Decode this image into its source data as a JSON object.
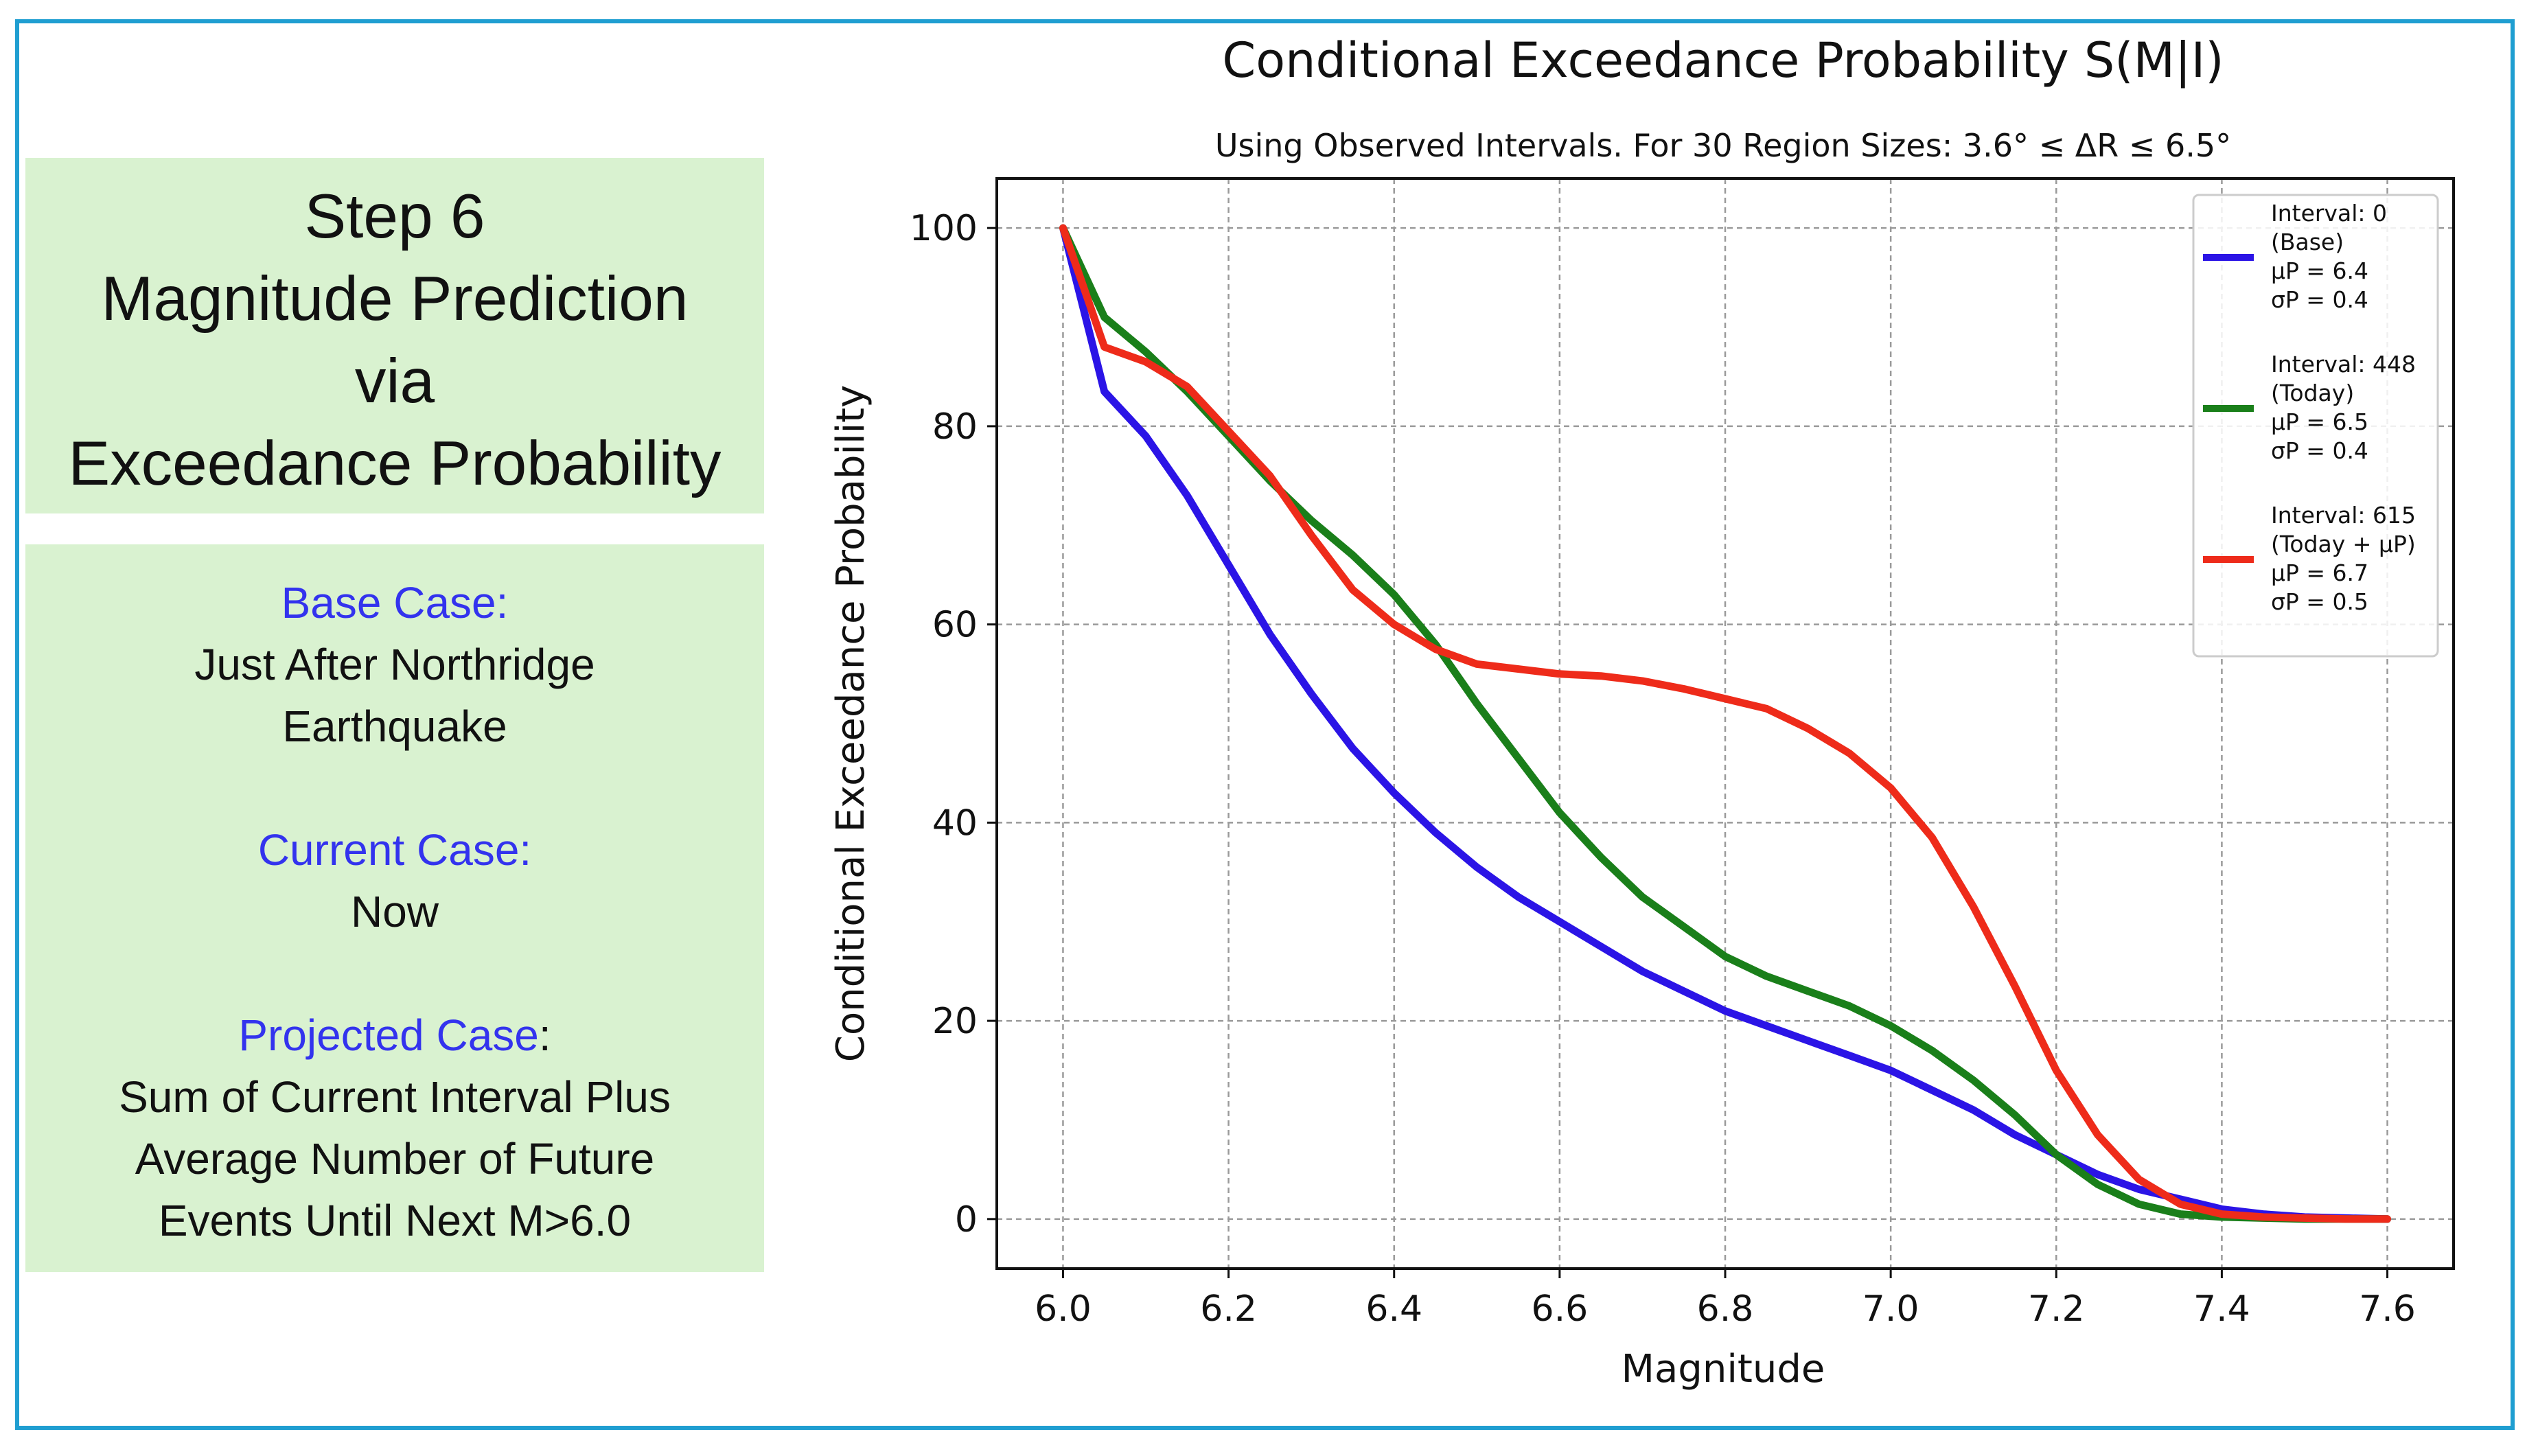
{
  "left_panel": {
    "title_lines": [
      "Step 6",
      "Magnitude Prediction",
      "via",
      "Exceedance Probability"
    ],
    "base_case": {
      "label": "Base Case:",
      "lines": [
        "Just After Northridge",
        "Earthquake"
      ]
    },
    "current_case": {
      "label": "Current Case:",
      "lines": [
        "Now"
      ]
    },
    "projected_case": {
      "label": "Projected Case",
      "colon": ":",
      "lines": [
        "Sum of Current Interval Plus",
        "Average Number of Future",
        "Events Until Next M>6.0"
      ]
    }
  },
  "colors": {
    "frame": "#1f9ed1",
    "panel_bg": "#d9f2d0",
    "case_label": "#3333ee"
  },
  "chart_data": {
    "type": "line",
    "title": "Conditional Exceedance Probability S(M|I)",
    "subtitle": "Using Observed Intervals.  For 30 Region Sizes: 3.6° ≤ ΔR ≤ 6.5°",
    "xlabel": "Magnitude",
    "ylabel": "Conditional Exceedance Probability",
    "xlim": [
      5.92,
      7.68
    ],
    "ylim": [
      -5,
      105
    ],
    "xticks": [
      "6.0",
      "6.2",
      "6.4",
      "6.6",
      "6.8",
      "7.0",
      "7.2",
      "7.4",
      "7.6"
    ],
    "yticks": [
      "0",
      "20",
      "40",
      "60",
      "80",
      "100"
    ],
    "grid": true,
    "legend_position": "top-right",
    "series": [
      {
        "legend_lines": [
          "Interval: 0",
          "(Base)",
          "μP = 6.4",
          "σP = 0.4"
        ],
        "color": "#2b14e6",
        "x": [
          6.0,
          6.05,
          6.1,
          6.15,
          6.2,
          6.25,
          6.3,
          6.35,
          6.4,
          6.45,
          6.5,
          6.55,
          6.6,
          6.65,
          6.7,
          6.75,
          6.8,
          6.85,
          6.9,
          6.95,
          7.0,
          7.05,
          7.1,
          7.15,
          7.2,
          7.25,
          7.3,
          7.35,
          7.4,
          7.45,
          7.5,
          7.55,
          7.6
        ],
        "y": [
          100,
          83.5,
          79,
          73,
          66,
          59,
          53,
          47.5,
          43,
          39,
          35.5,
          32.5,
          30,
          27.5,
          25,
          23,
          21,
          19.5,
          18,
          16.5,
          15,
          13,
          11,
          8.5,
          6.5,
          4.5,
          3,
          2,
          1,
          0.5,
          0.2,
          0.1,
          0
        ]
      },
      {
        "legend_lines": [
          "Interval: 448",
          "(Today)",
          "μP = 6.5",
          "σP = 0.4"
        ],
        "color": "#1a7f1a",
        "x": [
          6.0,
          6.05,
          6.1,
          6.15,
          6.2,
          6.25,
          6.3,
          6.35,
          6.4,
          6.45,
          6.5,
          6.55,
          6.6,
          6.65,
          6.7,
          6.75,
          6.8,
          6.85,
          6.9,
          6.95,
          7.0,
          7.05,
          7.1,
          7.15,
          7.2,
          7.25,
          7.3,
          7.35,
          7.4,
          7.45,
          7.5,
          7.55,
          7.6
        ],
        "y": [
          100,
          91,
          87.5,
          83.5,
          79,
          74.5,
          70.5,
          67,
          63,
          58,
          52,
          46.5,
          41,
          36.5,
          32.5,
          29.5,
          26.5,
          24.5,
          23,
          21.5,
          19.5,
          17,
          14,
          10.5,
          6.5,
          3.5,
          1.5,
          0.5,
          0.2,
          0.1,
          0,
          0,
          0
        ]
      },
      {
        "legend_lines": [
          "Interval: 615",
          "(Today + μP)",
          "μP = 6.7",
          "σP = 0.5"
        ],
        "color": "#ee2b1a",
        "x": [
          6.0,
          6.05,
          6.1,
          6.15,
          6.2,
          6.25,
          6.3,
          6.35,
          6.4,
          6.45,
          6.5,
          6.55,
          6.6,
          6.65,
          6.7,
          6.75,
          6.8,
          6.85,
          6.9,
          6.95,
          7.0,
          7.05,
          7.1,
          7.15,
          7.2,
          7.25,
          7.3,
          7.35,
          7.4,
          7.45,
          7.5,
          7.55,
          7.6
        ],
        "y": [
          100,
          88,
          86.5,
          84,
          79.5,
          75,
          69,
          63.5,
          60,
          57.5,
          56,
          55.5,
          55,
          54.8,
          54.3,
          53.5,
          52.5,
          51.5,
          49.5,
          47,
          43.5,
          38.5,
          31.5,
          23.5,
          15,
          8.5,
          4,
          1.5,
          0.5,
          0.2,
          0.1,
          0,
          0
        ]
      }
    ]
  }
}
